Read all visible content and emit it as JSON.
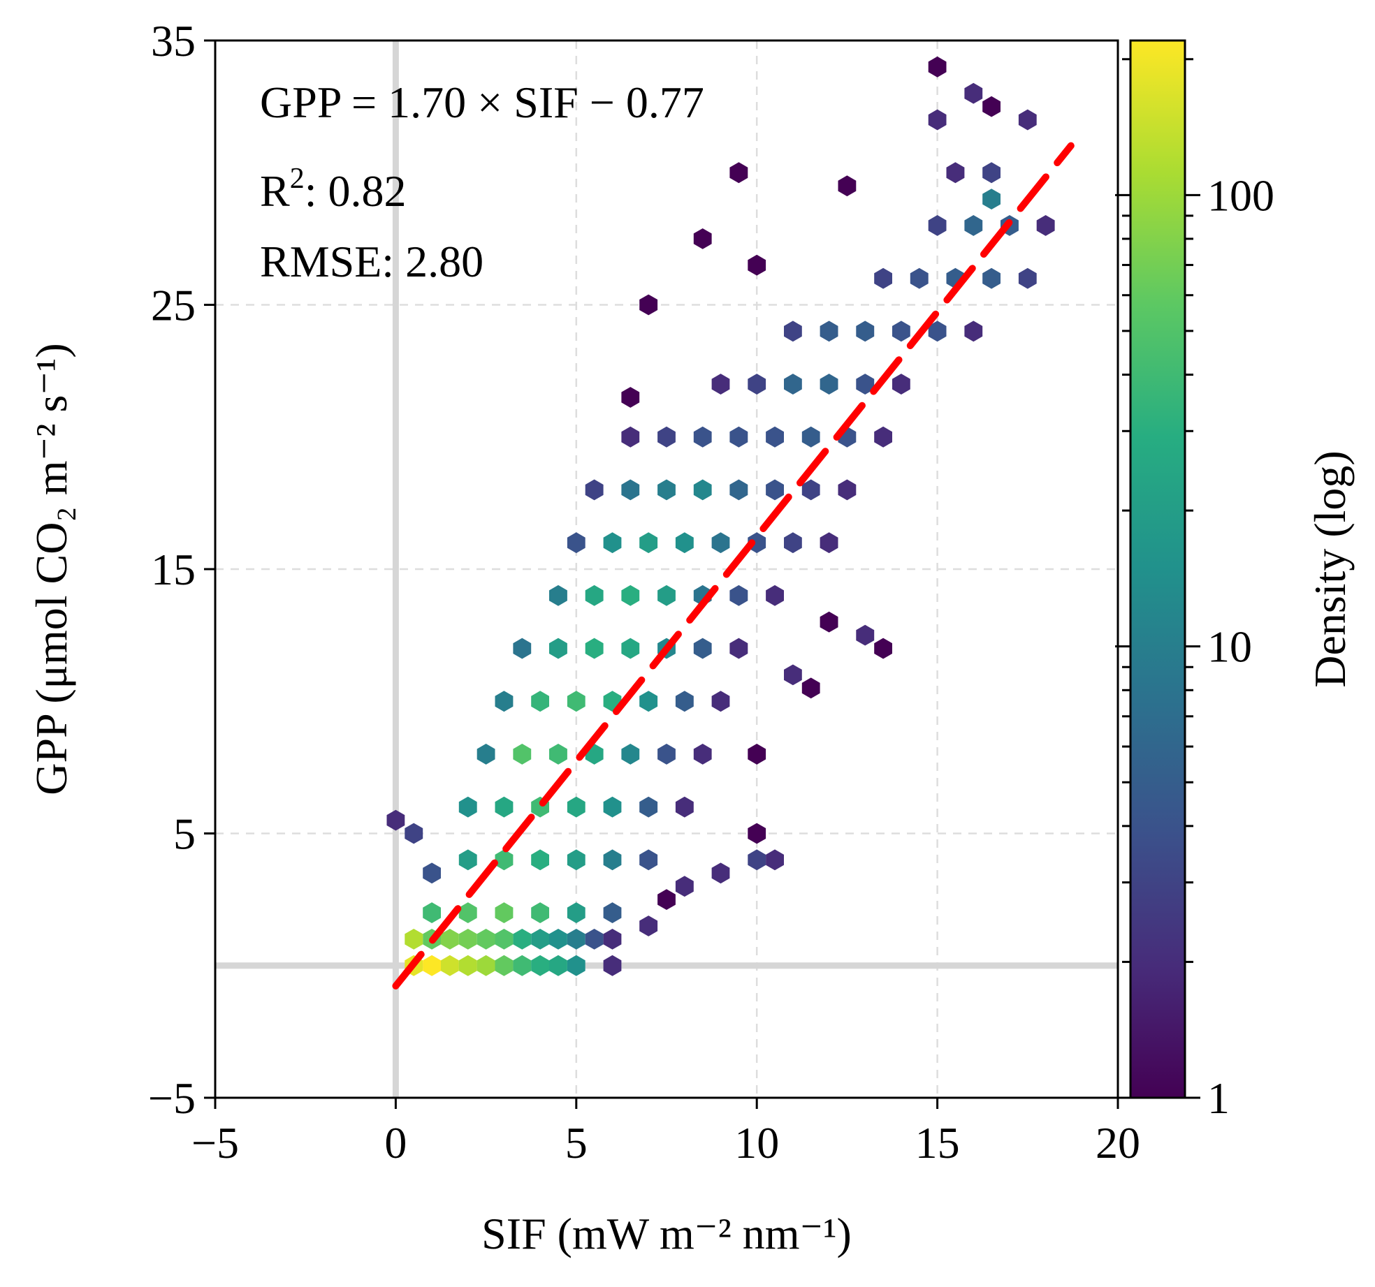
{
  "chart_data": {
    "type": "hexbin",
    "title": "",
    "xlabel": "SIF (mW m⁻² nm⁻¹)",
    "ylabel": "GPP (μmol CO₂ m⁻² s⁻¹)",
    "xlim": [
      -5,
      20
    ],
    "ylim": [
      -5,
      35
    ],
    "xticks": [
      -5,
      0,
      5,
      10,
      15,
      20
    ],
    "yticks": [
      -5,
      5,
      15,
      25,
      35
    ],
    "xtick_labels": [
      "−5",
      "0",
      "5",
      "10",
      "15",
      "20"
    ],
    "ytick_labels": [
      "−5",
      "5",
      "15",
      "25",
      "35"
    ],
    "grid": true,
    "reference_lines": {
      "x": 0,
      "y": 0
    },
    "colorbar": {
      "label": "Density (log)",
      "scale": "log",
      "min": 1,
      "max": 220,
      "tick_labels": [
        "1",
        "10",
        "100"
      ],
      "ticks": [
        1,
        10,
        100
      ],
      "colormap": "viridis"
    },
    "fit": {
      "slope": 1.7,
      "intercept": -0.77,
      "x_range": [
        0,
        18.7
      ],
      "color": "#ff0000",
      "style": "dashed"
    },
    "annotations": {
      "equation": "GPP = 1.70 × SIF − 0.77",
      "r2_label": "R",
      "r2_sup": "2",
      "r2_value": ": 0.82",
      "rmse": "RMSE: 2.80"
    },
    "hexbin": {
      "hex_width_sif": 0.5,
      "points": [
        [
          0.0,
          5.5,
          2
        ],
        [
          0.5,
          5.0,
          3
        ],
        [
          1.0,
          3.5,
          4
        ],
        [
          1.0,
          1.0,
          60
        ],
        [
          0.5,
          0.0,
          180
        ],
        [
          1.0,
          0.0,
          220
        ],
        [
          1.5,
          0.0,
          150
        ],
        [
          2.0,
          0.0,
          120
        ],
        [
          2.5,
          0.0,
          100
        ],
        [
          3.0,
          0.0,
          60
        ],
        [
          3.5,
          0.0,
          40
        ],
        [
          4.0,
          0.0,
          30
        ],
        [
          4.5,
          0.0,
          25
        ],
        [
          5.0,
          0.0,
          15
        ],
        [
          6.0,
          0.0,
          2
        ],
        [
          0.5,
          1.0,
          120
        ],
        [
          1.5,
          1.0,
          80
        ],
        [
          2.0,
          1.0,
          70
        ],
        [
          2.5,
          1.0,
          60
        ],
        [
          3.0,
          1.0,
          50
        ],
        [
          3.5,
          1.0,
          30
        ],
        [
          4.0,
          1.0,
          20
        ],
        [
          4.5,
          1.0,
          15
        ],
        [
          5.0,
          1.0,
          10
        ],
        [
          5.5,
          1.0,
          4
        ],
        [
          6.0,
          1.0,
          2
        ],
        [
          1.0,
          2.0,
          40
        ],
        [
          2.0,
          2.0,
          50
        ],
        [
          3.0,
          2.0,
          60
        ],
        [
          4.0,
          2.0,
          40
        ],
        [
          5.0,
          2.0,
          20
        ],
        [
          6.0,
          2.0,
          5
        ],
        [
          7.0,
          1.5,
          2
        ],
        [
          7.5,
          2.5,
          1
        ],
        [
          8.0,
          3.0,
          2
        ],
        [
          9.0,
          3.5,
          2
        ],
        [
          10.0,
          4.0,
          3
        ],
        [
          10.5,
          4.0,
          2
        ],
        [
          2.0,
          4.0,
          20
        ],
        [
          3.0,
          4.0,
          40
        ],
        [
          4.0,
          4.0,
          30
        ],
        [
          5.0,
          4.0,
          20
        ],
        [
          6.0,
          4.0,
          10
        ],
        [
          7.0,
          4.0,
          4
        ],
        [
          2.0,
          6.0,
          15
        ],
        [
          3.0,
          6.0,
          25
        ],
        [
          4.0,
          6.0,
          40
        ],
        [
          5.0,
          6.0,
          25
        ],
        [
          6.0,
          6.0,
          15
        ],
        [
          7.0,
          6.0,
          5
        ],
        [
          8.0,
          6.0,
          2
        ],
        [
          2.5,
          8.0,
          10
        ],
        [
          3.5,
          8.0,
          50
        ],
        [
          4.5,
          8.0,
          40
        ],
        [
          5.5,
          8.0,
          25
        ],
        [
          6.5,
          8.0,
          12
        ],
        [
          7.5,
          8.0,
          4
        ],
        [
          8.5,
          8.0,
          2
        ],
        [
          3.0,
          10.0,
          10
        ],
        [
          4.0,
          10.0,
          35
        ],
        [
          5.0,
          10.0,
          40
        ],
        [
          6.0,
          10.0,
          30
        ],
        [
          7.0,
          10.0,
          15
        ],
        [
          8.0,
          10.0,
          5
        ],
        [
          9.0,
          10.0,
          2
        ],
        [
          3.5,
          12.0,
          8
        ],
        [
          4.5,
          12.0,
          20
        ],
        [
          5.5,
          12.0,
          30
        ],
        [
          6.5,
          12.0,
          25
        ],
        [
          7.5,
          12.0,
          12
        ],
        [
          8.5,
          12.0,
          5
        ],
        [
          9.5,
          12.0,
          2
        ],
        [
          4.5,
          14.0,
          10
        ],
        [
          5.5,
          14.0,
          25
        ],
        [
          6.5,
          14.0,
          30
        ],
        [
          7.5,
          14.0,
          20
        ],
        [
          8.5,
          14.0,
          8
        ],
        [
          9.5,
          14.0,
          4
        ],
        [
          10.5,
          14.0,
          2
        ],
        [
          5.0,
          16.0,
          4
        ],
        [
          6.0,
          16.0,
          15
        ],
        [
          7.0,
          16.0,
          20
        ],
        [
          8.0,
          16.0,
          15
        ],
        [
          9.0,
          16.0,
          8
        ],
        [
          10.0,
          16.0,
          4
        ],
        [
          11.0,
          16.0,
          3
        ],
        [
          12.0,
          16.0,
          2
        ],
        [
          5.5,
          18.0,
          3
        ],
        [
          6.5,
          18.0,
          8
        ],
        [
          7.5,
          18.0,
          10
        ],
        [
          8.5,
          18.0,
          12
        ],
        [
          9.5,
          18.0,
          6
        ],
        [
          10.5,
          18.0,
          4
        ],
        [
          11.5,
          18.0,
          3
        ],
        [
          12.5,
          18.0,
          2
        ],
        [
          6.5,
          20.0,
          2
        ],
        [
          7.5,
          20.0,
          3
        ],
        [
          8.5,
          20.0,
          4
        ],
        [
          9.5,
          20.0,
          4
        ],
        [
          10.5,
          20.0,
          4
        ],
        [
          11.5,
          20.0,
          5
        ],
        [
          12.5,
          20.0,
          4
        ],
        [
          13.5,
          20.0,
          2
        ],
        [
          9.0,
          22.0,
          2
        ],
        [
          10.0,
          22.0,
          3
        ],
        [
          11.0,
          22.0,
          6
        ],
        [
          12.0,
          22.0,
          6
        ],
        [
          13.0,
          22.0,
          4
        ],
        [
          14.0,
          22.0,
          2
        ],
        [
          11.0,
          24.0,
          3
        ],
        [
          12.0,
          24.0,
          5
        ],
        [
          13.0,
          24.0,
          5
        ],
        [
          14.0,
          24.0,
          4
        ],
        [
          15.0,
          24.0,
          4
        ],
        [
          16.0,
          24.0,
          2
        ],
        [
          13.5,
          26.0,
          3
        ],
        [
          14.5,
          26.0,
          4
        ],
        [
          15.5,
          26.0,
          5
        ],
        [
          16.5,
          26.0,
          5
        ],
        [
          17.5,
          26.0,
          3
        ],
        [
          15.0,
          28.0,
          3
        ],
        [
          16.0,
          28.0,
          6
        ],
        [
          17.0,
          28.0,
          5
        ],
        [
          18.0,
          28.0,
          2
        ],
        [
          15.5,
          30.0,
          2
        ],
        [
          16.5,
          30.0,
          3
        ],
        [
          15.0,
          32.0,
          2
        ],
        [
          17.5,
          32.0,
          2
        ],
        [
          16.0,
          33.0,
          2
        ],
        [
          16.5,
          29.0,
          10
        ],
        [
          13.0,
          12.5,
          2
        ],
        [
          13.5,
          12.0,
          1
        ],
        [
          12.0,
          13.0,
          1
        ],
        [
          11.0,
          11.0,
          2
        ],
        [
          11.5,
          10.5,
          1
        ],
        [
          10.0,
          8.0,
          1
        ],
        [
          10.0,
          5.0,
          1
        ],
        [
          15.0,
          34.0,
          1
        ],
        [
          16.5,
          32.5,
          1
        ],
        [
          8.5,
          27.5,
          1
        ],
        [
          10.0,
          26.5,
          1
        ],
        [
          7.0,
          25.0,
          1
        ],
        [
          6.5,
          21.5,
          1
        ],
        [
          9.5,
          30.0,
          1
        ],
        [
          12.5,
          29.5,
          1
        ]
      ]
    }
  }
}
